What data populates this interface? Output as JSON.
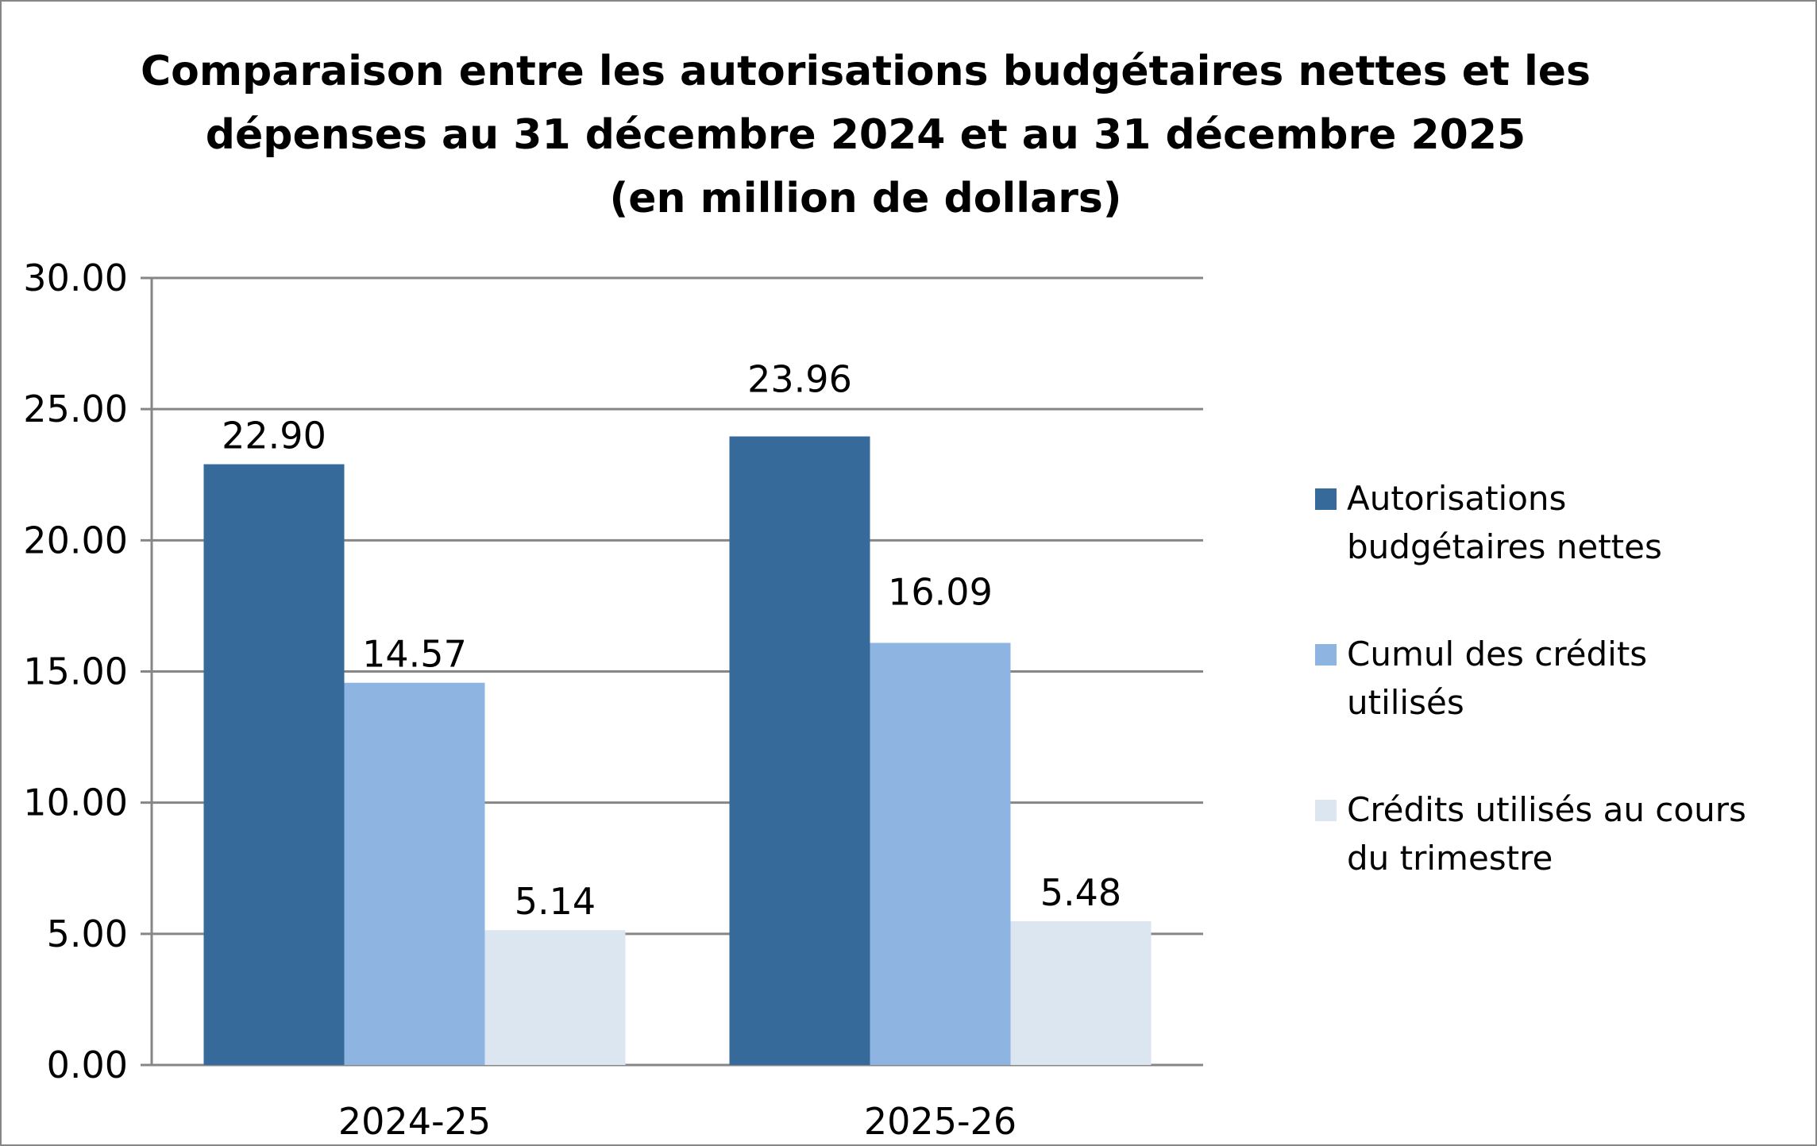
{
  "chart_data": {
    "type": "bar",
    "title": [
      "Comparaison entre les autorisations budgétaires nettes et les",
      "dépenses au 31 décembre 2024 et au 31 décembre 2025",
      "(en million de dollars)"
    ],
    "categories": [
      "2024-25",
      "2025-26"
    ],
    "series": [
      {
        "name": [
          "Autorisations",
          "budgétaires nettes"
        ],
        "values": [
          22.9,
          23.96
        ],
        "labels": [
          "22.90",
          "23.96"
        ],
        "color": "#366A9A"
      },
      {
        "name": [
          "Cumul des crédits",
          "utilisés"
        ],
        "values": [
          14.57,
          16.09
        ],
        "labels": [
          "14.57",
          "16.09"
        ],
        "color": "#8EB4E2"
      },
      {
        "name": [
          "Crédits utilisés au cours",
          "du trimestre"
        ],
        "values": [
          5.14,
          5.48
        ],
        "labels": [
          "5.14",
          "5.48"
        ],
        "color": "#DCE6F1"
      }
    ],
    "ylim": [
      0,
      30
    ],
    "yticks": [
      "0.00",
      "5.00",
      "10.00",
      "15.00",
      "20.00",
      "25.00",
      "30.00"
    ],
    "grid": true,
    "legend": "right",
    "xlabel": "",
    "ylabel": ""
  }
}
